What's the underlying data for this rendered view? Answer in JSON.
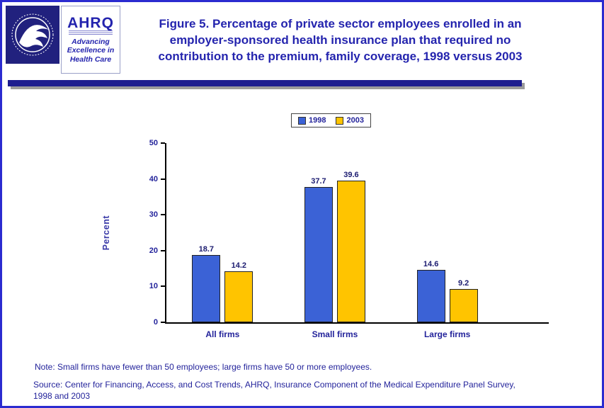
{
  "page": {
    "title": "Figure 5. Percentage of private sector employees enrolled in an employer-sponsored health insurance plan that required no contribution to the premium, family coverage, 1998 versus 2003"
  },
  "logos": {
    "hhs_alt": "U.S. Department of Health and Human Services seal",
    "ahrq_name": "AHRQ",
    "ahrq_tagline_line1": "Advancing",
    "ahrq_tagline_line2": "Excellence in",
    "ahrq_tagline_line3": "Health Care"
  },
  "chart_data": {
    "type": "bar",
    "title": "Figure 5. Percentage of private sector employees enrolled in an employer-sponsored health insurance plan that required no contribution to the premium, family coverage, 1998 versus 2003",
    "categories": [
      "All firms",
      "Small firms",
      "Large firms"
    ],
    "series": [
      {
        "name": "1998",
        "color": "#3B62D6",
        "values": [
          18.7,
          37.7,
          14.6
        ]
      },
      {
        "name": "2003",
        "color": "#FFC400",
        "values": [
          14.2,
          39.6,
          9.2
        ]
      }
    ],
    "xlabel": "",
    "ylabel": "Percent",
    "ylim": [
      0,
      50
    ],
    "yticks": [
      0,
      10,
      20,
      30,
      40,
      50
    ],
    "grid": false,
    "legend_position": "top-center",
    "value_labels": true
  },
  "notes": {
    "note": "Note: Small firms have fewer than 50 employees; large firms have 50 or more employees.",
    "source_lines": [
      "Source: Center for Financing, Access, and Cost Trends, AHRQ, Insurance Component of the Medical Expenditure Panel Survey,",
      "1998 and 2003"
    ]
  },
  "theme": {
    "border_blue": "#2B2BD0",
    "title_blue": "#2424AE",
    "navy": "#23239B",
    "value_navy": "#1B1B70",
    "rule_navy": "#1D1D8F",
    "shadow_gray": "#9B9B9B",
    "hhs_navy": "#21217E",
    "percent_purple": "#3A3AA8",
    "bar_blue": "#3B62D6",
    "bar_gold": "#FFC400"
  }
}
